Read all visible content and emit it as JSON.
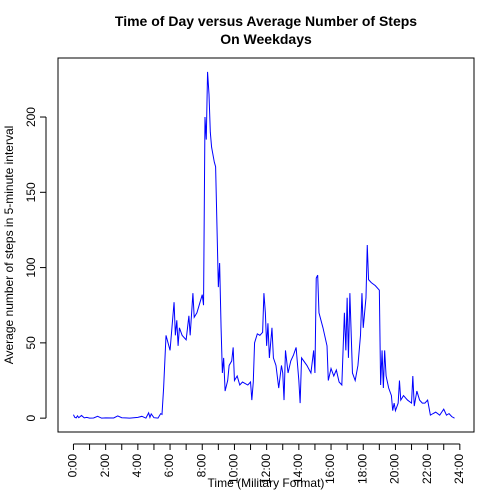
{
  "chart_data": {
    "type": "line",
    "title": "Time of Day versus Average Number of Steps",
    "subtitle": "On Weekdays",
    "x_label": "Time (Military Format)",
    "y_label": "Average number of steps in 5-minute interval",
    "series": [
      {
        "color": "#0000ff",
        "x": [
          0,
          0.08,
          0.17,
          0.25,
          0.33,
          0.5,
          0.67,
          0.83,
          1.0,
          1.25,
          1.5,
          1.75,
          2.0,
          2.5,
          2.75,
          3.0,
          3.5,
          4.0,
          4.25,
          4.5,
          4.67,
          4.75,
          4.83,
          5.0,
          5.25,
          5.42,
          5.5,
          5.6,
          5.75,
          6.0,
          6.25,
          6.33,
          6.42,
          6.5,
          6.58,
          6.75,
          7.0,
          7.17,
          7.25,
          7.42,
          7.5,
          7.67,
          8.0,
          8.08,
          8.17,
          8.25,
          8.33,
          8.42,
          8.5,
          8.58,
          8.75,
          8.83,
          9.0,
          9.08,
          9.17,
          9.25,
          9.33,
          9.42,
          9.58,
          9.67,
          9.83,
          9.92,
          10.0,
          10.17,
          10.33,
          10.5,
          10.67,
          10.83,
          11.0,
          11.08,
          11.17,
          11.25,
          11.42,
          11.58,
          11.75,
          11.83,
          11.92,
          12.0,
          12.08,
          12.17,
          12.33,
          12.42,
          12.58,
          12.75,
          12.92,
          13.0,
          13.08,
          13.17,
          13.33,
          13.5,
          13.67,
          13.83,
          14.0,
          14.08,
          14.17,
          14.5,
          14.75,
          14.92,
          15.0,
          15.08,
          15.17,
          15.25,
          15.5,
          15.75,
          15.83,
          16.0,
          16.17,
          16.33,
          16.5,
          16.67,
          16.83,
          16.92,
          17.0,
          17.08,
          17.17,
          17.33,
          17.5,
          17.67,
          17.83,
          17.92,
          18.0,
          18.17,
          18.25,
          18.33,
          18.5,
          18.75,
          19.0,
          19.08,
          19.17,
          19.25,
          19.33,
          19.42,
          19.58,
          19.75,
          19.83,
          19.92,
          20.0,
          20.17,
          20.25,
          20.33,
          20.5,
          20.75,
          21.0,
          21.08,
          21.17,
          21.33,
          21.5,
          21.67,
          21.83,
          22.0,
          22.17,
          22.33,
          22.5,
          22.75,
          23.0,
          23.17,
          23.33,
          23.5,
          23.67
        ],
        "values": [
          2.3,
          0.5,
          0.2,
          1.5,
          0.3,
          1.8,
          0.2,
          0.5,
          0,
          0.1,
          1.2,
          0,
          0.2,
          0.1,
          1.5,
          0.3,
          0,
          0.5,
          1.2,
          0,
          3.5,
          0.5,
          2.8,
          0.3,
          0,
          3,
          2.5,
          20,
          55,
          45,
          77,
          55,
          65,
          48,
          60,
          55,
          52,
          68,
          55,
          83,
          67,
          70,
          82,
          75,
          200,
          185,
          230,
          215,
          190,
          180,
          170,
          167,
          87,
          103,
          60,
          30,
          40,
          18,
          25,
          35,
          38,
          47,
          25,
          28,
          22,
          24,
          23,
          22,
          24,
          12,
          24,
          50,
          56,
          55,
          57,
          83,
          70,
          48,
          63,
          40,
          60,
          40,
          35,
          20,
          35,
          30,
          12,
          45,
          30,
          38,
          42,
          47,
          25,
          10,
          40,
          35,
          30,
          45,
          30,
          93,
          95,
          70,
          60,
          48,
          25,
          33,
          28,
          32,
          24,
          22,
          70,
          45,
          80,
          40,
          83,
          30,
          25,
          35,
          55,
          83,
          60,
          80,
          115,
          92,
          90,
          88,
          85,
          22,
          45,
          20,
          45,
          28,
          20,
          15,
          5,
          10,
          5,
          10,
          25,
          12,
          15,
          12,
          10,
          28,
          8,
          18,
          12,
          10,
          10,
          12,
          2,
          3,
          4,
          2,
          6,
          2,
          3,
          1,
          0
        ]
      }
    ],
    "xlim": [
      -0.96,
      24.88
    ],
    "ylim": [
      -9.2,
      239.2
    ],
    "xticks": [
      {
        "value": 0,
        "label": "0:00"
      },
      {
        "value": 2,
        "label": "2:00"
      },
      {
        "value": 4,
        "label": "4:00"
      },
      {
        "value": 6,
        "label": "6:00"
      },
      {
        "value": 8,
        "label": "8:00"
      },
      {
        "value": 10,
        "label": "10:00"
      },
      {
        "value": 12,
        "label": "12:00"
      },
      {
        "value": 14,
        "label": "14:00"
      },
      {
        "value": 16,
        "label": "16:00"
      },
      {
        "value": 18,
        "label": "18:00"
      },
      {
        "value": 20,
        "label": "20:00"
      },
      {
        "value": 22,
        "label": "22:00"
      },
      {
        "value": 24,
        "label": "24:00"
      }
    ],
    "xminor_ticks": [
      1,
      3,
      5,
      7,
      9,
      11,
      13,
      15,
      17,
      19,
      21,
      23
    ],
    "yticks": [
      0,
      50,
      100,
      150,
      200
    ]
  }
}
